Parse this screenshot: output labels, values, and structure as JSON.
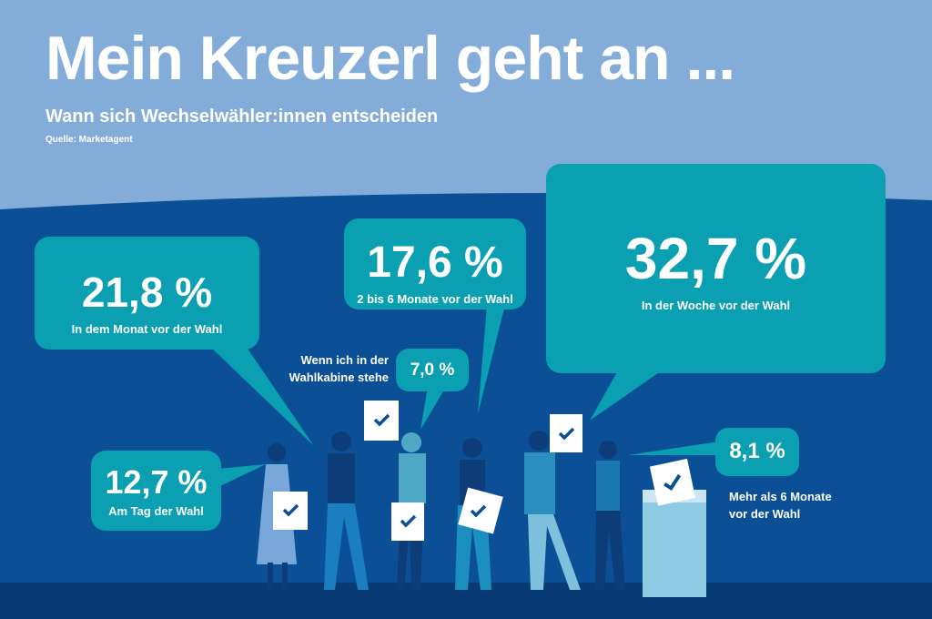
{
  "header": {
    "title": "Mein Kreuzerl geht an ...",
    "subtitle": "Wann sich Wechselwähler:innen entscheiden",
    "source": "Quelle: Marketagent"
  },
  "colors": {
    "sky": "#84acd9",
    "background": "#0b4f96",
    "floor": "#083a73",
    "bubble": "#0a9fb1"
  },
  "chart_data": {
    "type": "infographic-bubbles",
    "title": "Mein Kreuzerl geht an ...",
    "unit": "%",
    "items": [
      {
        "label": "In dem Monat vor der Wahl",
        "value": 21.8,
        "display": "21,8 %"
      },
      {
        "label": "2 bis 6 Monate vor der Wahl",
        "value": 17.6,
        "display": "17,6 %"
      },
      {
        "label": "In der Woche vor der Wahl",
        "value": 32.7,
        "display": "32,7 %"
      },
      {
        "label": "Wenn ich in der Wahlkabine stehe",
        "value": 7.0,
        "display": "7,0 %"
      },
      {
        "label": "Am Tag der Wahl",
        "value": 12.7,
        "display": "12,7 %"
      },
      {
        "label": "Mehr als 6 Monate vor der Wahl",
        "value": 8.1,
        "display": "8,1 %"
      }
    ]
  },
  "labels": {
    "kabine_line1": "Wenn ich in der",
    "kabine_line2": "Wahlkabine stehe",
    "six_line1": "Mehr als 6 Monate",
    "six_line2": "vor der Wahl"
  }
}
